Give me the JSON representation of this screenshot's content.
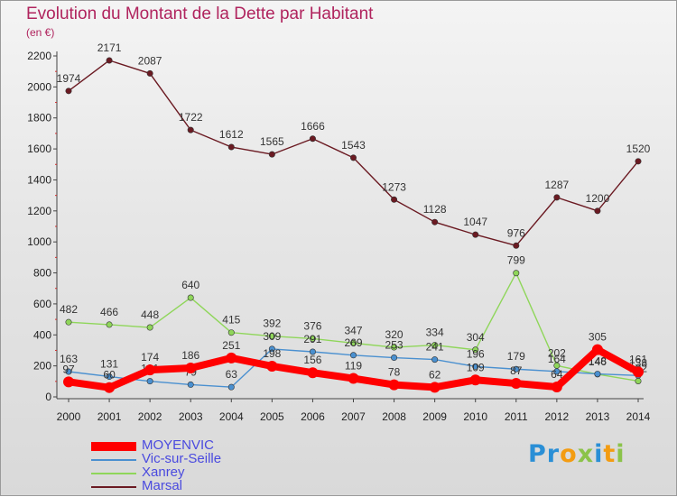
{
  "header": {
    "title": "Evolution du Montant de la Dette par Habitant",
    "unit": "(en €)"
  },
  "logo": {
    "text": "Proxiti",
    "letters": [
      {
        "ch": "P",
        "color": "#2a8fd6"
      },
      {
        "ch": "r",
        "color": "#2a8fd6"
      },
      {
        "ch": "o",
        "color": "#f39c12"
      },
      {
        "ch": "x",
        "color": "#8bc34a"
      },
      {
        "ch": "i",
        "color": "#2a8fd6"
      },
      {
        "ch": "t",
        "color": "#f39c12"
      },
      {
        "ch": "i",
        "color": "#8bc34a"
      }
    ]
  },
  "chart_data": {
    "type": "line",
    "title": "Evolution du Montant de la Dette par Habitant",
    "ylabel": "(en €)",
    "xlabel": "",
    "x": [
      "2000",
      "2001",
      "2002",
      "2003",
      "2004",
      "2005",
      "2006",
      "2007",
      "2008",
      "2009",
      "2010",
      "2011",
      "2012",
      "2013",
      "2014"
    ],
    "ylim": [
      0,
      2200
    ],
    "yticks": [
      0,
      200,
      400,
      600,
      800,
      1000,
      1200,
      1400,
      1600,
      1800,
      2000,
      2200
    ],
    "grid": false,
    "legend": "bottom-left",
    "series": [
      {
        "name": "Marsal",
        "color": "#6b1a22",
        "values": [
          1974,
          2171,
          2087,
          1722,
          1612,
          1565,
          1666,
          1543,
          1273,
          1128,
          1047,
          976,
          1287,
          1200,
          1520
        ]
      },
      {
        "name": "Xanrey",
        "color": "#8fd65a",
        "values": [
          482,
          466,
          448,
          640,
          415,
          392,
          376,
          347,
          320,
          334,
          304,
          799,
          202,
          146,
          102
        ]
      },
      {
        "name": "Vic-sur-Seille",
        "color": "#4a90d0",
        "values": [
          163,
          131,
          101,
          79,
          63,
          309,
          291,
          269,
          253,
          241,
          196,
          179,
          164,
          148,
          138
        ]
      },
      {
        "name": "MOYENVIC",
        "color": "#ff0000",
        "values": [
          97,
          60,
          174,
          186,
          251,
          198,
          156,
          119,
          78,
          62,
          109,
          87,
          64,
          305,
          161
        ]
      }
    ]
  }
}
